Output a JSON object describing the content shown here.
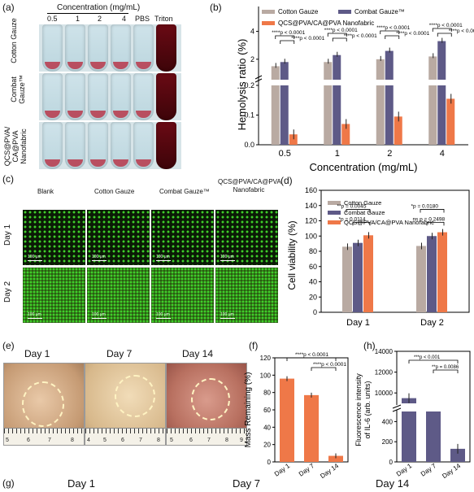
{
  "colors": {
    "gray": "#b9aaa2",
    "navy": "#5e5a87",
    "orange": "#ef7848"
  },
  "panel_a": {
    "label": "(a)",
    "conc_title": "Concentration (mg/mL)",
    "conc_ticks": [
      "0.5",
      "1",
      "2",
      "4"
    ],
    "pbs": "PBS",
    "triton": "Triton",
    "rows": [
      "Cotton Gauze",
      "Combat Gauze™",
      "QCS@PVA/ CA@PVA Nanofabric"
    ]
  },
  "panel_c": {
    "label": "(c)",
    "cols": [
      "Blank",
      "Cotton Gauze",
      "Combat Gauze™",
      "QCS@PVA/CA@PVA Nanofabric"
    ],
    "rows": [
      "Day 1",
      "Day 2"
    ],
    "scale": "100 μm"
  },
  "panel_e": {
    "label": "(e)",
    "days": [
      "Day 1",
      "Day 7",
      "Day 14"
    ],
    "ruler_nums": [
      "5",
      "6",
      "7",
      "8",
      "4",
      "5",
      "6",
      "7",
      "8",
      "5",
      "6",
      "7",
      "8",
      "9"
    ]
  },
  "panel_g": {
    "label": "(g)",
    "days": [
      "Day 1",
      "Day 7",
      "Day 14"
    ]
  },
  "chart_data": [
    {
      "panel": "(b)",
      "type": "bar",
      "categories": [
        "0.5",
        "1",
        "2",
        "4"
      ],
      "xlabel": "Concentration (mg/mL)",
      "ylabel": "Hemolysis ratio (%)",
      "legend": [
        "Cotton Gauze",
        "Combat Gauze™",
        "QCS@PVA/CA@PVA Nanofabric"
      ],
      "series": [
        {
          "name": "Cotton Gauze",
          "values": [
            1.5,
            1.8,
            2.0,
            2.2
          ]
        },
        {
          "name": "Combat Gauze™",
          "values": [
            1.8,
            2.3,
            2.6,
            3.3
          ]
        },
        {
          "name": "QCS@PVA/CA@PVA Nanofabric",
          "values": [
            0.035,
            0.07,
            0.095,
            0.155
          ]
        }
      ],
      "annotations": [
        "****p < 0.0001",
        "****p < 0.0001",
        "****p < 0.0001",
        "****p < 0.0001",
        "****p < 0.0001",
        "****p < 0.0001",
        "****p < 0.0001",
        "****p < 0.0001"
      ],
      "y_ticks_low": [
        "0.0",
        "0.1",
        "0.2"
      ],
      "y_ticks_high": [
        "2",
        "4"
      ]
    },
    {
      "panel": "(d)",
      "type": "bar",
      "categories": [
        "Day 1",
        "Day 2"
      ],
      "ylabel": "Cell viability (%)",
      "ylim": [
        0,
        160
      ],
      "y_ticks": [
        "0",
        "20",
        "40",
        "60",
        "80",
        "100",
        "120",
        "140",
        "160"
      ],
      "legend": [
        "Cotton Gauze",
        "Combat Gauze",
        "QCS@PVA/CA@PVA Nanofabric"
      ],
      "series": [
        {
          "name": "Cotton Gauze",
          "values": [
            86,
            87
          ]
        },
        {
          "name": "Combat Gauze",
          "values": [
            91,
            100
          ]
        },
        {
          "name": "QCS@PVA/CA@PVA Nanofabric",
          "values": [
            101,
            105
          ]
        }
      ],
      "annotations": [
        "**p = 0.0045",
        "*p = 0.0114",
        "*p = 0.0180",
        "ns p = 0.2498"
      ]
    },
    {
      "panel": "(f)",
      "type": "bar",
      "categories": [
        "Day 1",
        "Day 7",
        "Day 14"
      ],
      "ylabel": "Mass Remaining (%)",
      "ylim": [
        0,
        120
      ],
      "y_ticks": [
        "0",
        "20",
        "40",
        "60",
        "80",
        "100",
        "120"
      ],
      "values": [
        96,
        77,
        7
      ],
      "annotations": [
        "****p < 0.0001",
        "****p < 0.0001"
      ]
    },
    {
      "panel": "(h)",
      "type": "bar",
      "categories": [
        "Day 1",
        "Day 7",
        "Day 14"
      ],
      "ylabel": "Fluorescence intensity of IL-6 (arb. units)",
      "y_ticks_low": [
        "0",
        "200",
        "400"
      ],
      "y_ticks_high": [
        "10000",
        "12000",
        "14000"
      ],
      "values": [
        9500,
        580,
        130
      ],
      "annotations": [
        "***p < 0.001",
        "**p = 0.0086"
      ]
    }
  ]
}
